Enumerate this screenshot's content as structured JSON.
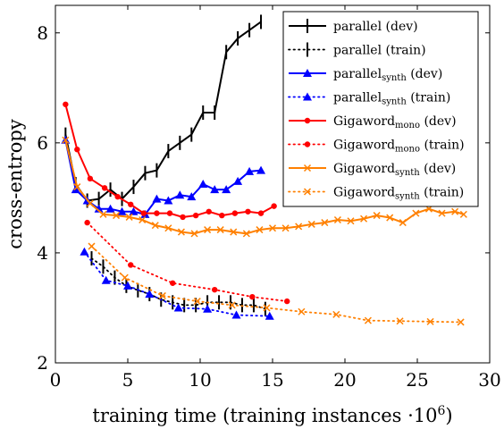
{
  "chart_data": {
    "type": "line",
    "title": "",
    "xlabel": "training time (training instances ·10",
    "xlabel_exp": "6",
    "xlabel_close": ")",
    "ylabel": "cross-entropy",
    "xlim": [
      0,
      30
    ],
    "ylim": [
      2,
      8.5
    ],
    "xticks": [
      0,
      5,
      10,
      15,
      20,
      25,
      30
    ],
    "yticks": [
      2,
      4,
      6,
      8
    ],
    "grid": false,
    "legend_position": "top-right",
    "series": [
      {
        "name": "parallel",
        "name_sub": "",
        "name_suffix": " (dev)",
        "color": "#000000",
        "style": "solid",
        "marker": "bar",
        "x": [
          0.7,
          1.4,
          2.2,
          3.0,
          3.8,
          4.6,
          5.4,
          6.2,
          7.0,
          7.8,
          8.6,
          9.4,
          10.2,
          11.0,
          11.8,
          12.6,
          13.4,
          14.2
        ],
        "y": [
          6.15,
          5.25,
          4.95,
          4.98,
          5.15,
          4.98,
          5.2,
          5.45,
          5.5,
          5.85,
          6.0,
          6.15,
          6.55,
          6.55,
          7.65,
          7.9,
          8.05,
          8.2
        ]
      },
      {
        "name": "parallel",
        "name_sub": "",
        "name_suffix": " (train)",
        "color": "#000000",
        "style": "dotted",
        "marker": "bar",
        "x": [
          2.5,
          3.3,
          4.1,
          4.9,
          5.7,
          6.5,
          7.3,
          8.1,
          8.9,
          9.7,
          10.5,
          11.3,
          12.1,
          12.9,
          13.7,
          14.5
        ],
        "y": [
          3.9,
          3.75,
          3.55,
          3.4,
          3.32,
          3.25,
          3.15,
          3.1,
          3.05,
          3.05,
          3.1,
          3.1,
          3.1,
          3.05,
          3.05,
          2.98
        ]
      },
      {
        "name": "parallel",
        "name_sub": "synth",
        "name_suffix": " (dev)",
        "color": "#0000ff",
        "style": "solid",
        "marker": "triangle",
        "x": [
          0.7,
          1.4,
          2.2,
          3.0,
          3.8,
          4.6,
          5.4,
          6.2,
          7.0,
          7.8,
          8.6,
          9.4,
          10.2,
          11.0,
          11.8,
          12.6,
          13.4,
          14.2
        ],
        "y": [
          6.05,
          5.15,
          4.95,
          4.8,
          4.8,
          4.75,
          4.75,
          4.7,
          4.98,
          4.95,
          5.05,
          5.02,
          5.25,
          5.15,
          5.15,
          5.3,
          5.48,
          5.5
        ]
      },
      {
        "name": "parallel",
        "name_sub": "synth",
        "name_suffix": " (train)",
        "color": "#0000ff",
        "style": "dotted",
        "marker": "triangle",
        "x": [
          2.0,
          3.5,
          5.0,
          6.5,
          8.5,
          10.5,
          12.5,
          14.8
        ],
        "y": [
          4.02,
          3.5,
          3.4,
          3.25,
          3.0,
          2.98,
          2.87,
          2.85
        ]
      },
      {
        "name": "Gigaword",
        "name_sub": "mono",
        "name_suffix": " (dev)",
        "color": "#ff0000",
        "style": "solid",
        "marker": "circle",
        "x": [
          0.7,
          1.5,
          2.4,
          3.4,
          4.3,
          5.2,
          6.1,
          7.0,
          7.9,
          8.8,
          9.7,
          10.6,
          11.5,
          12.4,
          13.3,
          14.2,
          15.1
        ],
        "y": [
          6.7,
          5.88,
          5.35,
          5.18,
          5.02,
          4.88,
          4.72,
          4.72,
          4.72,
          4.65,
          4.68,
          4.75,
          4.68,
          4.72,
          4.75,
          4.72,
          4.85
        ]
      },
      {
        "name": "Gigaword",
        "name_sub": "mono",
        "name_suffix": " (train)",
        "color": "#ff0000",
        "style": "dotted",
        "marker": "circle",
        "x": [
          2.2,
          5.2,
          8.1,
          11.0,
          13.6,
          16.0
        ],
        "y": [
          4.55,
          3.78,
          3.45,
          3.33,
          3.2,
          3.12
        ]
      },
      {
        "name": "Gigaword",
        "name_sub": "synth",
        "name_suffix": " (dev)",
        "color": "#ff8000",
        "style": "solid",
        "marker": "cross",
        "x": [
          0.7,
          1.5,
          2.4,
          3.3,
          4.2,
          5.1,
          6.0,
          6.9,
          7.8,
          8.7,
          9.6,
          10.5,
          11.4,
          12.3,
          13.2,
          14.1,
          15.0,
          15.9,
          16.8,
          17.7,
          18.6,
          19.5,
          20.4,
          21.3,
          22.2,
          23.1,
          24.0,
          24.9,
          25.8,
          26.7,
          27.6,
          28.2
        ],
        "y": [
          6.05,
          5.2,
          4.9,
          4.7,
          4.68,
          4.65,
          4.6,
          4.5,
          4.45,
          4.38,
          4.35,
          4.42,
          4.42,
          4.38,
          4.35,
          4.42,
          4.45,
          4.45,
          4.48,
          4.52,
          4.55,
          4.6,
          4.58,
          4.62,
          4.68,
          4.64,
          4.55,
          4.72,
          4.8,
          4.72,
          4.75,
          4.7
        ]
      },
      {
        "name": "Gigaword",
        "name_sub": "synth",
        "name_suffix": " (train)",
        "color": "#ff8000",
        "style": "dotted",
        "marker": "cross",
        "x": [
          2.5,
          4.8,
          7.4,
          9.8,
          12.2,
          14.6,
          17.0,
          19.4,
          21.6,
          23.8,
          25.9,
          28.0
        ],
        "y": [
          4.12,
          3.55,
          3.22,
          3.12,
          3.05,
          3.0,
          2.93,
          2.88,
          2.77,
          2.76,
          2.75,
          2.74
        ]
      }
    ]
  }
}
